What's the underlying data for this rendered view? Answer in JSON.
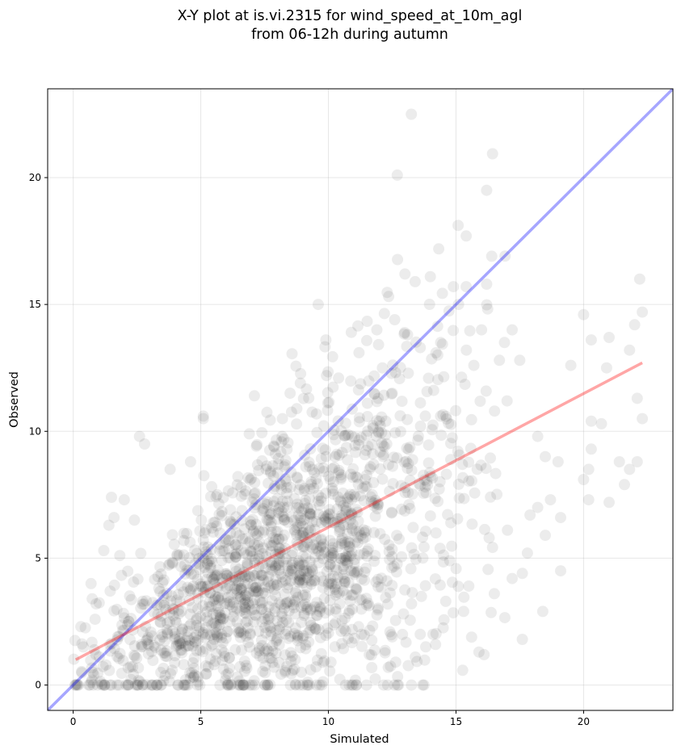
{
  "chart_data": {
    "type": "scatter",
    "title_line1": "X-Y plot at is.vi.2315 for wind_speed_at_10m_agl",
    "title_line2": "from 06-12h during autumn",
    "xlabel": "Simulated",
    "ylabel": "Observed",
    "xlim": [
      -1,
      23.5
    ],
    "ylim": [
      -1,
      23.5
    ],
    "x_ticks": [
      0,
      5,
      10,
      15,
      20
    ],
    "y_ticks": [
      0,
      5,
      10,
      15,
      20
    ],
    "x_tick_labels": [
      "0",
      "5",
      "10",
      "15",
      "20"
    ],
    "y_tick_labels": [
      "0",
      "5",
      "10",
      "15",
      "20"
    ],
    "grid": true,
    "identity_line": {
      "from": [
        -1,
        -1
      ],
      "to": [
        23.5,
        23.5
      ],
      "color": "#0000ff"
    },
    "regression_line": {
      "from": [
        0.1,
        1.0
      ],
      "to": [
        22.3,
        12.7
      ],
      "color": "#ff0000"
    },
    "points_color": "#000000",
    "points": [
      [
        12.7,
        20.1
      ],
      [
        16.2,
        19.5
      ],
      [
        15.4,
        17.7
      ],
      [
        16.4,
        16.9
      ],
      [
        13.0,
        16.2
      ],
      [
        22.2,
        16.0
      ],
      [
        13.4,
        15.9
      ],
      [
        16.2,
        15.8
      ],
      [
        14.9,
        15.7
      ],
      [
        15.4,
        15.7
      ],
      [
        9.6,
        15.0
      ],
      [
        15.1,
        15.0
      ],
      [
        22.3,
        14.7
      ],
      [
        20.0,
        14.6
      ],
      [
        12.6,
        14.4
      ],
      [
        22.0,
        14.2
      ],
      [
        16.0,
        14.0
      ],
      [
        17.2,
        14.0
      ],
      [
        11.9,
        14.0
      ],
      [
        10.9,
        13.9
      ],
      [
        9.9,
        13.6
      ],
      [
        16.9,
        13.5
      ],
      [
        21.0,
        13.7
      ],
      [
        20.3,
        13.6
      ],
      [
        13.6,
        13.3
      ],
      [
        14.4,
        13.5
      ],
      [
        21.8,
        13.2
      ],
      [
        16.7,
        12.8
      ],
      [
        17.5,
        12.8
      ],
      [
        11.2,
        13.1
      ],
      [
        15.7,
        12.6
      ],
      [
        19.5,
        12.6
      ],
      [
        20.9,
        12.5
      ],
      [
        10.4,
        12.1
      ],
      [
        8.9,
        11.9
      ],
      [
        12.5,
        11.5
      ],
      [
        8.5,
        11.5
      ],
      [
        7.1,
        11.4
      ],
      [
        17.0,
        11.2
      ],
      [
        20.3,
        10.4
      ],
      [
        22.3,
        10.5
      ],
      [
        20.7,
        10.3
      ],
      [
        22.1,
        11.3
      ],
      [
        5.1,
        10.5
      ],
      [
        5.1,
        10.6
      ],
      [
        8.2,
        10.5
      ],
      [
        6.9,
        9.9
      ],
      [
        2.6,
        9.8
      ],
      [
        2.8,
        9.5
      ],
      [
        18.2,
        9.8
      ],
      [
        18.5,
        9.0
      ],
      [
        19.0,
        8.8
      ],
      [
        20.3,
        9.3
      ],
      [
        21.4,
        8.8
      ],
      [
        22.1,
        8.8
      ],
      [
        21.8,
        8.5
      ],
      [
        21.6,
        7.9
      ],
      [
        20.2,
        8.5
      ],
      [
        20.0,
        8.1
      ],
      [
        21.0,
        7.2
      ],
      [
        20.2,
        7.3
      ],
      [
        18.7,
        7.3
      ],
      [
        18.2,
        7.0
      ],
      [
        17.9,
        6.7
      ],
      [
        19.1,
        6.6
      ],
      [
        18.5,
        5.9
      ],
      [
        17.8,
        5.2
      ],
      [
        17.6,
        4.4
      ],
      [
        17.2,
        4.2
      ],
      [
        19.1,
        4.5
      ],
      [
        18.4,
        2.9
      ],
      [
        17.6,
        1.8
      ],
      [
        16.1,
        1.2
      ],
      [
        15.9,
        1.3
      ],
      [
        14.2,
        1.6
      ],
      [
        11.6,
        1.2
      ],
      [
        3.8,
        8.5
      ],
      [
        4.6,
        8.8
      ],
      [
        1.5,
        7.4
      ],
      [
        1.6,
        6.6
      ],
      [
        2.0,
        7.3
      ],
      [
        1.4,
        6.3
      ],
      [
        2.4,
        6.5
      ],
      [
        0.7,
        4.0
      ],
      [
        1.2,
        5.3
      ],
      [
        0.3,
        2.3
      ],
      [
        0.9,
        3.2
      ],
      [
        0.4,
        1.5
      ],
      [
        16.5,
        3.6
      ],
      [
        15.5,
        3.9
      ],
      [
        14.6,
        3.3
      ],
      [
        14.1,
        2.0
      ],
      [
        15.3,
        2.9
      ],
      [
        16.3,
        5.8
      ],
      [
        9.5,
        2.2
      ],
      [
        11.3,
        2.0
      ],
      [
        10.1,
        0.9
      ],
      [
        9.3,
        0.6
      ],
      [
        7.0,
        0.0
      ],
      [
        8.7,
        1.0
      ],
      [
        12.5,
        1.9
      ],
      [
        13.6,
        2.0
      ]
    ],
    "cluster_seed": 20315,
    "cluster_count": 1650
  }
}
